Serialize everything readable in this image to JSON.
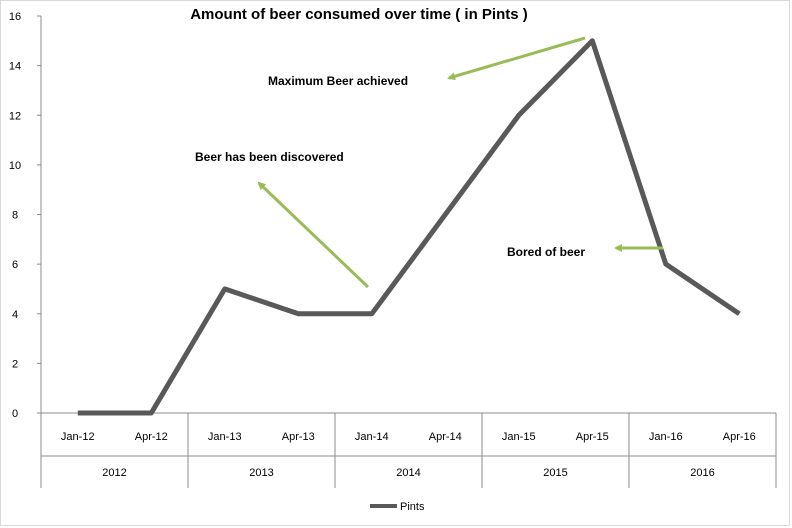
{
  "chart_data": {
    "type": "line",
    "title": "Amount of beer consumed over time ( in Pints )",
    "categories": [
      "Jan-12",
      "Apr-12",
      "Jan-13",
      "Apr-13",
      "Jan-14",
      "Apr-14",
      "Jan-15",
      "Apr-15",
      "Jan-16",
      "Apr-16"
    ],
    "year_groups": [
      "2012",
      "2013",
      "2014",
      "2015",
      "2016"
    ],
    "series": [
      {
        "name": "Pints",
        "values": [
          0,
          0,
          5,
          4,
          4,
          8,
          12,
          15,
          6,
          4
        ],
        "color": "#595959"
      }
    ],
    "yticks": [
      "0",
      "2",
      "4",
      "6",
      "8",
      "10",
      "12",
      "14",
      "16"
    ],
    "ylim": [
      0,
      16
    ],
    "grid": false,
    "legend": "bottom",
    "annotations": [
      {
        "text": "Maximum Beer achieved",
        "arrow_color": "#9bbb59"
      },
      {
        "text": "Beer has been discovered",
        "arrow_color": "#9bbb59"
      },
      {
        "text": "Bored of beer",
        "arrow_color": "#9bbb59"
      }
    ]
  }
}
